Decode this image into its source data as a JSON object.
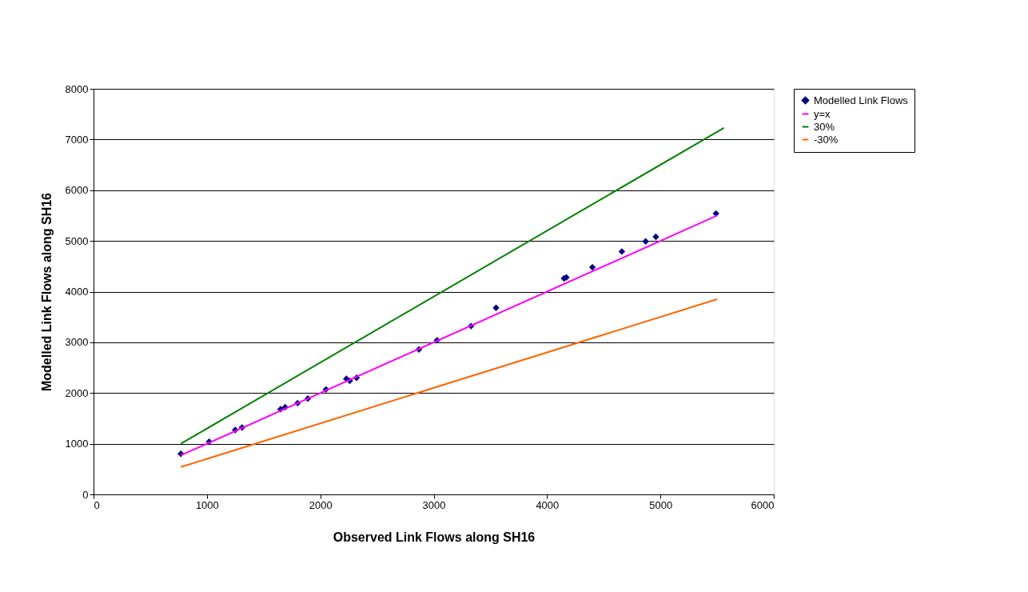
{
  "chart_data": {
    "type": "scatter",
    "xlabel": "Observed Link Flows along SH16",
    "ylabel": "Modelled Link Flows along SH16",
    "xlim": [
      0,
      6000
    ],
    "xticks": [
      0,
      1000,
      2000,
      3000,
      4000,
      5000,
      6000
    ],
    "ylim": [
      0,
      8000
    ],
    "yticks": [
      0,
      1000,
      2000,
      3000,
      4000,
      5000,
      6000,
      7000,
      8000
    ],
    "grid": "y",
    "legend": "right",
    "series": [
      {
        "name": "Modelled Link Flows",
        "marker": "diamond",
        "color": "#000080",
        "x": [
          770,
          1020,
          1250,
          1310,
          1650,
          1690,
          1800,
          1890,
          2050,
          2230,
          2260,
          2320,
          2870,
          3030,
          3330,
          3550,
          4150,
          4170,
          4400,
          4660,
          4870,
          4960,
          5490
        ],
        "values": [
          800,
          1040,
          1270,
          1320,
          1680,
          1720,
          1800,
          1890,
          2070,
          2280,
          2240,
          2300,
          2860,
          3040,
          3320,
          3680,
          4260,
          4280,
          4480,
          4790,
          4990,
          5080,
          5540
        ]
      },
      {
        "name": "y=x",
        "type": "line",
        "marker": "none",
        "line_style": "solid",
        "color": "#ff00ff",
        "x": [
          770,
          5500
        ],
        "values": [
          770,
          5500
        ]
      },
      {
        "name": "30%",
        "type": "line",
        "marker": "none",
        "line_style": "solid",
        "color": "#008000",
        "x": [
          770,
          5560
        ],
        "values": [
          1000,
          7230
        ]
      },
      {
        "name": "-30%",
        "type": "line",
        "marker": "none",
        "line_style": "solid",
        "color": "#ff6600",
        "x": [
          770,
          5500
        ],
        "values": [
          540,
          3850
        ]
      }
    ]
  }
}
